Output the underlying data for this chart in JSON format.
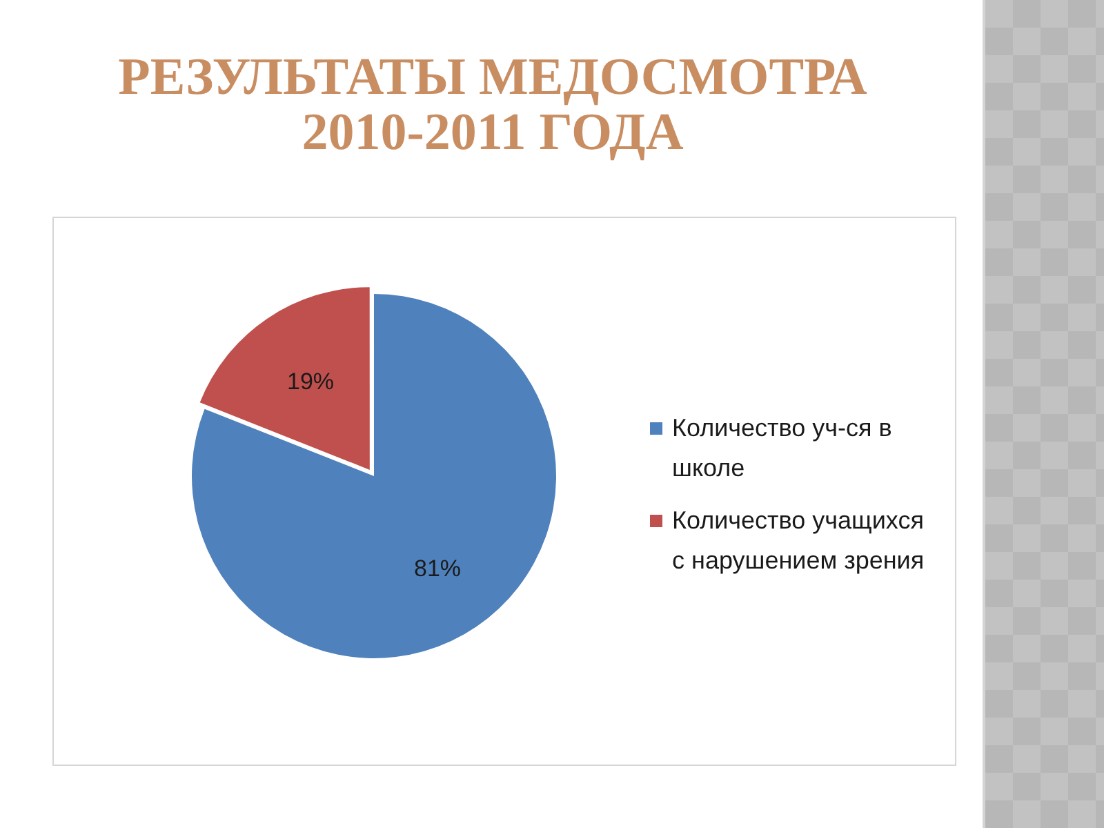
{
  "chart_data": {
    "type": "pie",
    "title": "РЕЗУЛЬТАТЫ МЕДОСМОТРА 2010-2011 ГОДА",
    "categories": [
      "Количество уч-ся в школе",
      "Количество учащихся с нарушением зрения"
    ],
    "values": [
      81,
      19
    ],
    "colors": [
      "#4f81bd",
      "#c0504d"
    ],
    "value_labels": [
      "81%",
      "19%"
    ],
    "legend": "right"
  }
}
